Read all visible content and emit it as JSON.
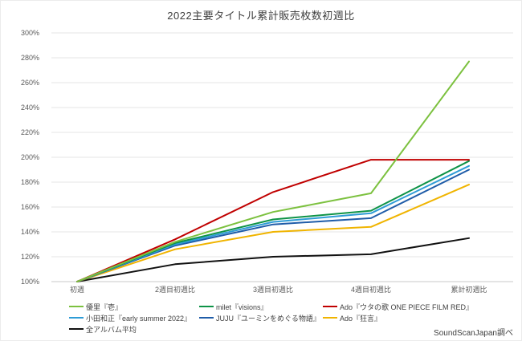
{
  "title": "2022主要タイトル累計販売枚数初週比",
  "source_credit": "SoundScanJapan調べ",
  "chart_data": {
    "type": "line",
    "title": "2022主要タイトル累計販売枚数初週比",
    "categories": [
      "初週",
      "2週目初週比",
      "3週目初週比",
      "4週目初週比",
      "累計初週比"
    ],
    "series": [
      {
        "name": "優里『壱』",
        "color": "#7cc13f",
        "values": [
          100,
          132,
          156,
          171,
          277
        ]
      },
      {
        "name": "milet『visions』",
        "color": "#0e9347",
        "values": [
          100,
          131,
          150,
          157,
          197
        ]
      },
      {
        "name": "Ado『ウタの歌 ONE PIECE FILM RED』",
        "color": "#c00000",
        "values": [
          100,
          134,
          172,
          198,
          198
        ]
      },
      {
        "name": "小田和正『early summer 2022』",
        "color": "#2e9cd6",
        "values": [
          100,
          130,
          148,
          155,
          193
        ]
      },
      {
        "name": "JUJU『ユーミンをめぐる物語』",
        "color": "#1f5ca8",
        "values": [
          100,
          129,
          146,
          151,
          190
        ]
      },
      {
        "name": "Ado『狂言』",
        "color": "#f0b400",
        "values": [
          100,
          126,
          140,
          144,
          178
        ]
      },
      {
        "name": "全アルバム平均",
        "color": "#111111",
        "values": [
          100,
          114,
          120,
          122,
          135
        ]
      }
    ],
    "xlabel": "",
    "ylabel": "",
    "ylim": [
      100,
      300
    ],
    "y_ticks": [
      100,
      120,
      140,
      160,
      180,
      200,
      220,
      240,
      260,
      280,
      300
    ],
    "y_tick_format": "percent",
    "grid": "horizontal",
    "legend_position": "bottom",
    "draw_order": [
      6,
      5,
      4,
      3,
      1,
      2,
      0
    ]
  }
}
